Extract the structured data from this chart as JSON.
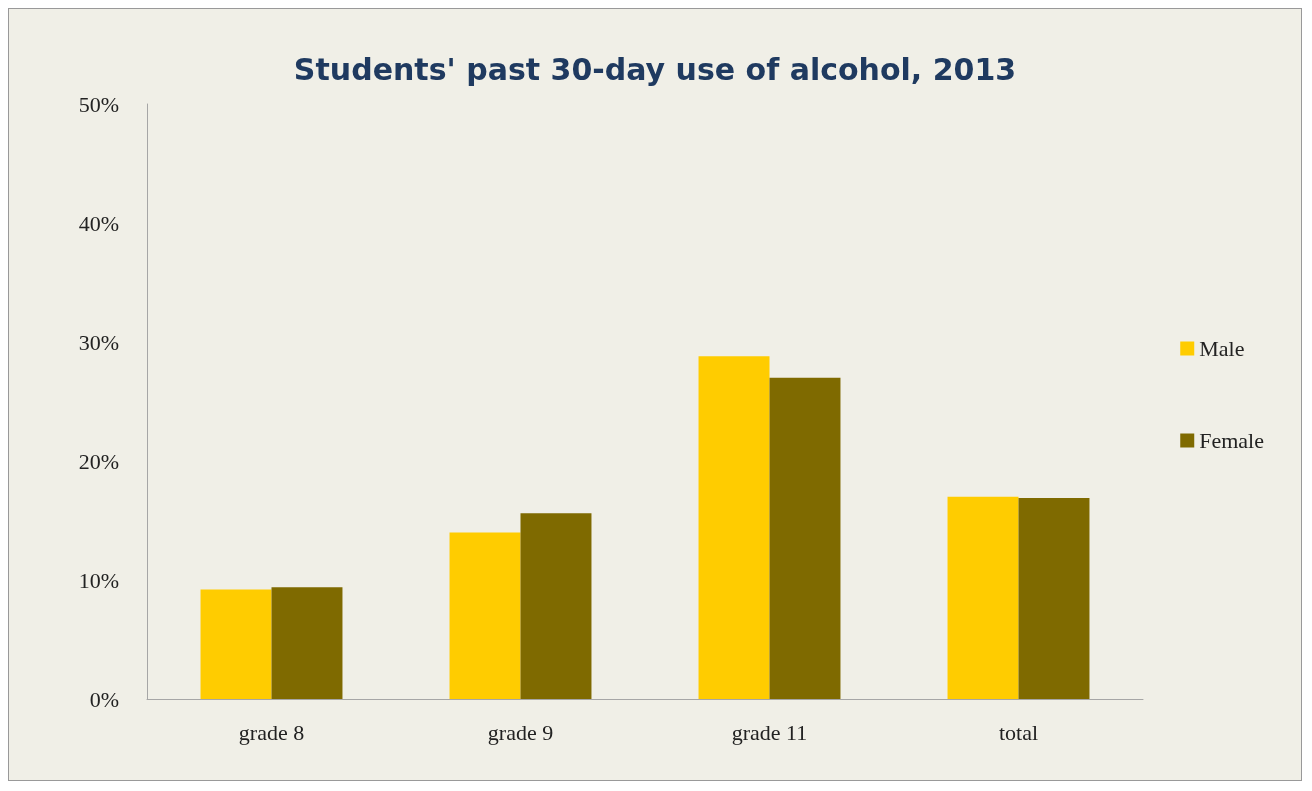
{
  "chart_data": {
    "type": "bar",
    "title": "Students' past 30-day use of alcohol, 2013",
    "categories": [
      "grade 8",
      "grade 9",
      "grade 11",
      "total"
    ],
    "series": [
      {
        "name": "Male",
        "color": "#ffcc00",
        "values": [
          9.2,
          14.0,
          28.8,
          17.0
        ]
      },
      {
        "name": "Female",
        "color": "#7f6a00",
        "values": [
          9.4,
          15.6,
          27.0,
          16.9
        ]
      }
    ],
    "ylim": [
      0,
      50
    ],
    "yticks": [
      {
        "value": 0,
        "label": "0%"
      },
      {
        "value": 10,
        "label": "10%"
      },
      {
        "value": 20,
        "label": "20%"
      },
      {
        "value": 30,
        "label": "30%"
      },
      {
        "value": 40,
        "label": "40%"
      },
      {
        "value": 50,
        "label": "50%"
      }
    ],
    "grid": false,
    "legend": "right"
  }
}
